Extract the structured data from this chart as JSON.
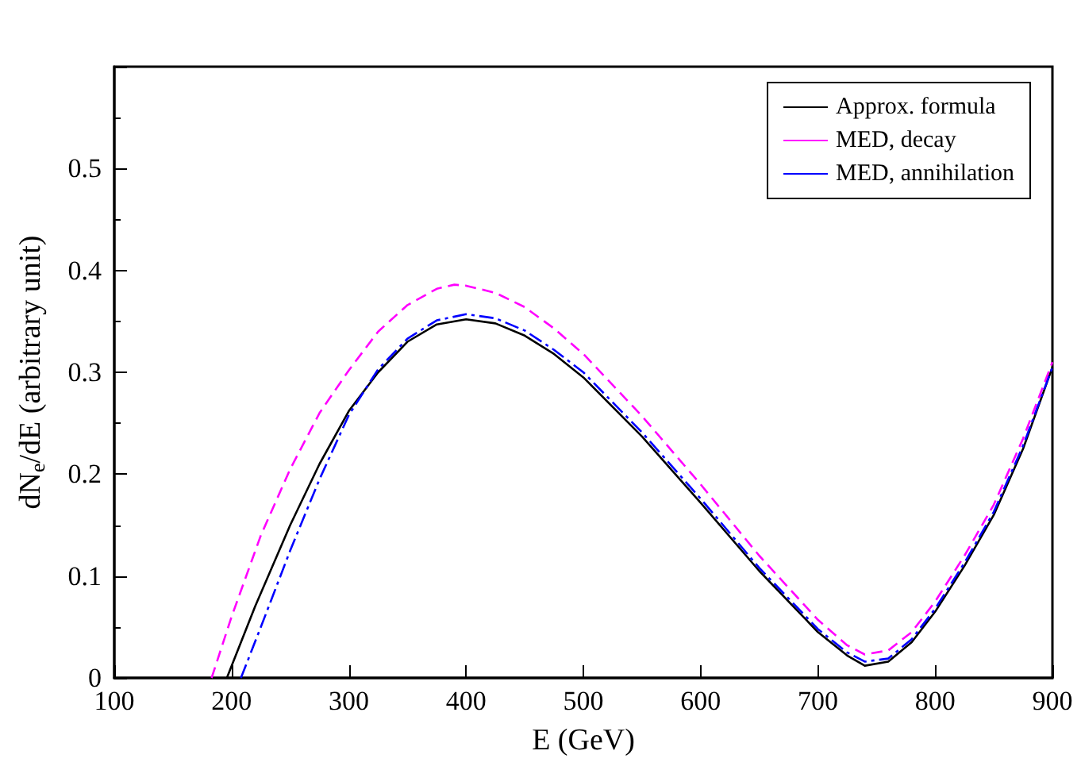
{
  "chart_data": {
    "type": "line",
    "xlabel": "E (GeV)",
    "ylabel": "dN$_{e}$/dE (arbitrary unit)",
    "xlim": [
      100,
      900
    ],
    "xticks": [
      100,
      200,
      300,
      400,
      500,
      600,
      700,
      800,
      900
    ],
    "ylim": [
      0,
      0.6
    ],
    "yticks": [
      0,
      0.1,
      0.2,
      0.3,
      0.4,
      0.5,
      {
        "value": 0.6,
        "label": null
      }
    ],
    "grid": false,
    "legend": "top right",
    "marker": "none",
    "series": [
      {
        "name": "Approx. formula",
        "color": "#000000",
        "line_style": "solid",
        "x": [
          196,
          220,
          250,
          275,
          300,
          325,
          350,
          375,
          400,
          425,
          450,
          475,
          500,
          550,
          600,
          650,
          700,
          725,
          740,
          760,
          780,
          800,
          825,
          850,
          875,
          900
        ],
        "values": [
          0,
          0.07,
          0.15,
          0.21,
          0.262,
          0.3,
          0.33,
          0.347,
          0.352,
          0.348,
          0.336,
          0.318,
          0.295,
          0.237,
          0.172,
          0.105,
          0.045,
          0.022,
          0.012,
          0.016,
          0.035,
          0.065,
          0.11,
          0.16,
          0.225,
          0.305
        ]
      },
      {
        "name": "MED, decay",
        "color": "#ff00ff",
        "line_style": "dashed",
        "x": [
          183,
          200,
          225,
          250,
          275,
          300,
          325,
          350,
          375,
          390,
          400,
          425,
          450,
          475,
          500,
          550,
          600,
          650,
          700,
          725,
          740,
          760,
          780,
          800,
          825,
          850,
          875,
          900
        ],
        "values": [
          0,
          0.06,
          0.14,
          0.205,
          0.26,
          0.302,
          0.34,
          0.366,
          0.382,
          0.386,
          0.385,
          0.378,
          0.364,
          0.343,
          0.318,
          0.257,
          0.19,
          0.12,
          0.057,
          0.032,
          0.023,
          0.027,
          0.045,
          0.075,
          0.12,
          0.17,
          0.235,
          0.31
        ]
      },
      {
        "name": "MED, annihilation",
        "color": "#0000ff",
        "line_style": "dashdot",
        "x": [
          208,
          225,
          250,
          275,
          300,
          325,
          350,
          375,
          400,
          425,
          450,
          475,
          500,
          550,
          600,
          650,
          700,
          725,
          740,
          760,
          780,
          800,
          825,
          850,
          875,
          900
        ],
        "values": [
          0,
          0.05,
          0.125,
          0.195,
          0.258,
          0.303,
          0.333,
          0.351,
          0.357,
          0.353,
          0.341,
          0.322,
          0.3,
          0.241,
          0.176,
          0.108,
          0.048,
          0.025,
          0.016,
          0.019,
          0.038,
          0.068,
          0.113,
          0.163,
          0.228,
          0.305
        ]
      }
    ]
  }
}
